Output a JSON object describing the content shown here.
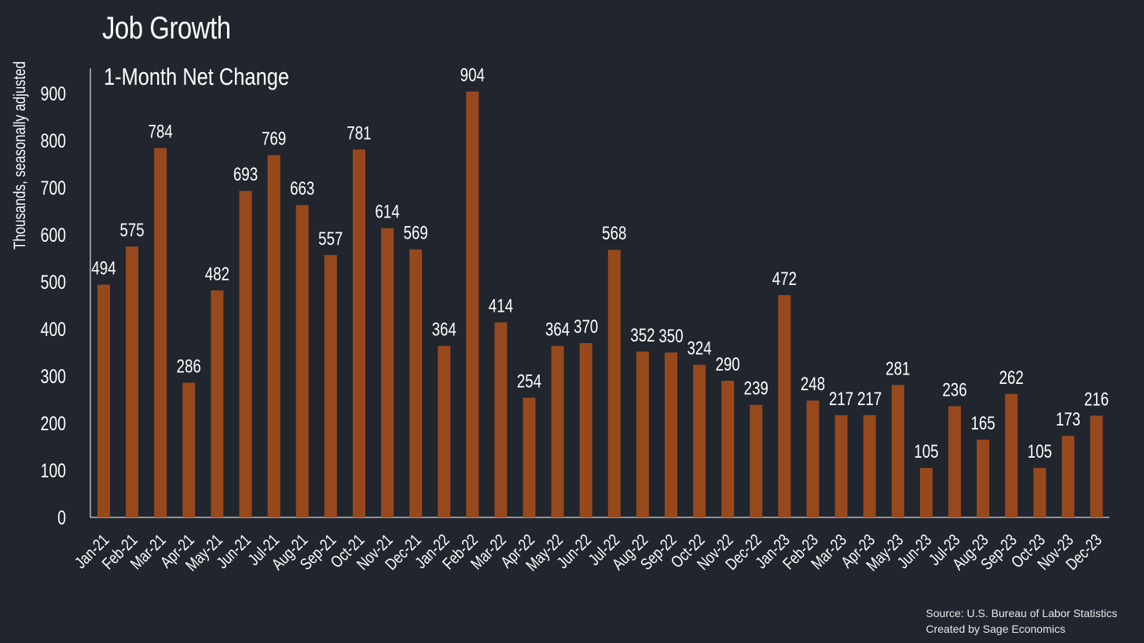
{
  "header": {
    "title": "Job Growth",
    "subtitle": "1-Month Net Change"
  },
  "footer": {
    "source": "Source: U.S. Bureau of Labor Statistics",
    "credit": "Created by Sage Economics"
  },
  "colors": {
    "background": "#21252d",
    "bar": "#97491d",
    "text": "#ffffff",
    "axis": "#ffffff"
  },
  "chart_data": {
    "type": "bar",
    "title": "Job Growth",
    "subtitle": "1-Month Net Change",
    "xlabel": "",
    "ylabel": "Thousands, seasonally adjusted",
    "ylim": [
      0,
      950
    ],
    "yticks": [
      0,
      100,
      200,
      300,
      400,
      500,
      600,
      700,
      800,
      900
    ],
    "grid": false,
    "legend": "none",
    "categories": [
      "Jan-21",
      "Feb-21",
      "Mar-21",
      "Apr-21",
      "May-21",
      "Jun-21",
      "Jul-21",
      "Aug-21",
      "Sep-21",
      "Oct-21",
      "Nov-21",
      "Dec-21",
      "Jan-22",
      "Feb-22",
      "Mar-22",
      "Apr-22",
      "May-22",
      "Jun-22",
      "Jul-22",
      "Aug-22",
      "Sep-22",
      "Oct-22",
      "Nov-22",
      "Dec-22",
      "Jan-23",
      "Feb-23",
      "Mar-23",
      "Apr-23",
      "May-23",
      "Jun-23",
      "Jul-23",
      "Aug-23",
      "Sep-23",
      "Oct-23",
      "Nov-23",
      "Dec-23"
    ],
    "values": [
      494,
      575,
      784,
      286,
      482,
      693,
      769,
      663,
      557,
      781,
      614,
      569,
      364,
      904,
      414,
      254,
      364,
      370,
      568,
      352,
      350,
      324,
      290,
      239,
      472,
      248,
      217,
      217,
      281,
      105,
      236,
      165,
      262,
      105,
      173,
      216
    ]
  }
}
